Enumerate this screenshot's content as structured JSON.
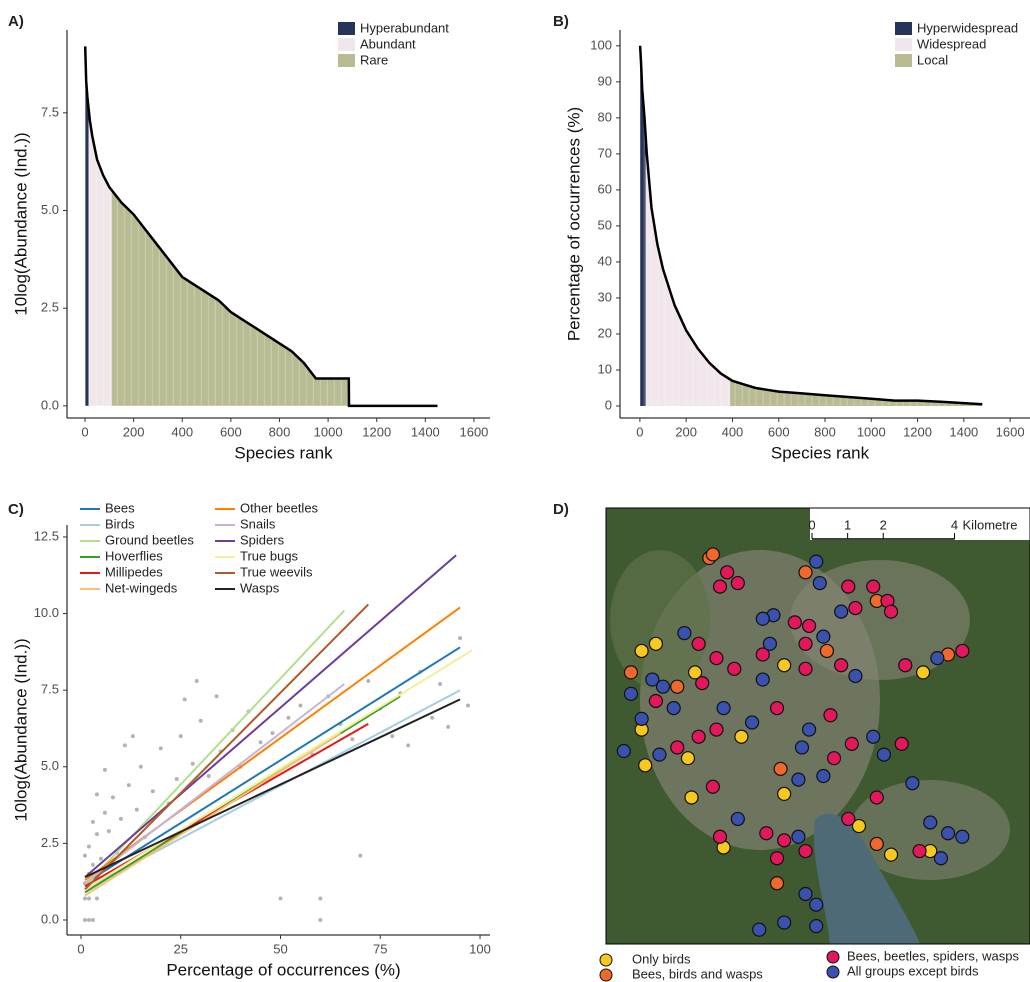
{
  "chart_data": [
    {
      "type": "area",
      "panel": "A)",
      "xlabel": "Species rank",
      "ylabel": "10log(Abundance (Ind.))",
      "x": [
        1,
        5,
        10,
        20,
        30,
        50,
        75,
        100,
        150,
        200,
        250,
        300,
        350,
        400,
        450,
        500,
        550,
        600,
        650,
        700,
        750,
        800,
        850,
        900,
        950,
        1000,
        1050,
        1085,
        1086,
        1450
      ],
      "y": [
        9.2,
        8.3,
        7.9,
        7.3,
        6.9,
        6.3,
        5.9,
        5.6,
        5.2,
        4.9,
        4.5,
        4.1,
        3.7,
        3.3,
        3.1,
        2.9,
        2.7,
        2.4,
        2.2,
        2.0,
        1.8,
        1.6,
        1.4,
        1.1,
        0.7,
        0.7,
        0.7,
        0.7,
        0,
        0
      ],
      "classes": [
        {
          "name": "Hyperabundant",
          "color": "#26345a",
          "ranks": [
            1,
            15
          ]
        },
        {
          "name": "Abundant",
          "color": "#f1e6ec",
          "ranks": [
            15,
            110
          ]
        },
        {
          "name": "Rare",
          "color": "#b9bb93",
          "ranks": [
            110,
            1450
          ]
        }
      ],
      "xlim": [
        -74,
        1666
      ],
      "ylim": [
        -0.31,
        9.62
      ],
      "xticks": [
        0,
        200,
        400,
        600,
        800,
        1000,
        1200,
        1400,
        1600
      ],
      "yticks": [
        {
          "value": 0,
          "label": "0.0"
        },
        {
          "value": 2.5,
          "label": "2.5"
        },
        {
          "value": 5,
          "label": "5.0"
        },
        {
          "value": 7.5,
          "label": "7.5"
        }
      ]
    },
    {
      "type": "area",
      "panel": "B)",
      "xlabel": "Species rank",
      "ylabel": "Percentage of occurrences (%)",
      "x": [
        1,
        5,
        10,
        20,
        30,
        50,
        75,
        100,
        150,
        200,
        250,
        300,
        350,
        400,
        450,
        500,
        550,
        600,
        700,
        800,
        900,
        1000,
        1100,
        1200,
        1300,
        1480
      ],
      "y": [
        100,
        95,
        88,
        80,
        70,
        55,
        45,
        38,
        28,
        21,
        16,
        12,
        9,
        7,
        6,
        5,
        4.5,
        4,
        3.5,
        3,
        2.5,
        2,
        1.5,
        1.5,
        1.2,
        0.5
      ],
      "classes": [
        {
          "name": "Hyperwidespread",
          "color": "#26345a",
          "ranks": [
            1,
            25
          ]
        },
        {
          "name": "Widespread",
          "color": "#f1e6ec",
          "ranks": [
            25,
            390
          ]
        },
        {
          "name": "Local",
          "color": "#b9bb93",
          "ranks": [
            390,
            1480
          ]
        }
      ],
      "xlim": [
        -86,
        1686
      ],
      "ylim": [
        -3.33,
        104.4
      ],
      "xticks": [
        0,
        200,
        400,
        600,
        800,
        1000,
        1200,
        1400,
        1600
      ],
      "yticks": [
        0,
        10,
        20,
        30,
        40,
        50,
        60,
        70,
        80,
        90,
        100
      ]
    },
    {
      "type": "scatter",
      "panel": "C)",
      "xlabel": "Percentage of occurrences (%)",
      "ylabel": "10log(Abundance (Ind.))",
      "points": {
        "color": "#9a9a9a",
        "x": [
          1,
          2,
          3,
          1,
          2,
          4,
          1,
          2,
          3,
          1,
          2,
          4,
          3,
          5,
          6,
          7,
          8,
          10,
          12,
          15,
          18,
          20,
          22,
          25,
          28,
          30,
          32,
          35,
          38,
          40,
          42,
          45,
          48,
          50,
          52,
          55,
          58,
          60,
          60,
          62,
          65,
          68,
          70,
          72,
          75,
          78,
          80,
          82,
          85,
          88,
          90,
          92,
          95,
          97,
          9,
          14,
          16,
          24,
          6,
          11,
          4,
          13,
          26,
          29,
          34
        ],
        "y": [
          0,
          0,
          0,
          0.7,
          0.7,
          0.7,
          1.2,
          1.5,
          1.8,
          2.1,
          2.4,
          2.8,
          3.2,
          2.0,
          3.5,
          2.9,
          4.0,
          3.3,
          4.4,
          5.0,
          4.2,
          5.6,
          3.8,
          6.0,
          5.1,
          6.5,
          4.7,
          5.5,
          6.2,
          5.0,
          6.8,
          5.8,
          6.1,
          0.7,
          6.6,
          7.0,
          5.4,
          0.7,
          0,
          7.3,
          6.4,
          5.9,
          2.1,
          7.8,
          6.9,
          6.0,
          7.4,
          5.7,
          8.1,
          6.6,
          7.7,
          6.3,
          9.2,
          7.0,
          2.2,
          3.6,
          2.7,
          4.6,
          4.9,
          5.7,
          4.1,
          6.0,
          7.2,
          7.8,
          7.3
        ]
      },
      "series": [
        {
          "name": "Bees",
          "color": "#1f78b4",
          "x": [
            1,
            95
          ],
          "y": [
            1.2,
            8.9
          ]
        },
        {
          "name": "Birds",
          "color": "#a6cee3",
          "x": [
            1,
            95
          ],
          "y": [
            1.0,
            7.5
          ]
        },
        {
          "name": "Ground beetles",
          "color": "#b2df8a",
          "x": [
            1,
            66
          ],
          "y": [
            1.1,
            10.1
          ]
        },
        {
          "name": "Hoverflies",
          "color": "#33a02c",
          "x": [
            1,
            80
          ],
          "y": [
            0.9,
            7.3
          ]
        },
        {
          "name": "Millipedes",
          "color": "#e31a1c",
          "x": [
            1,
            72
          ],
          "y": [
            1.1,
            6.4
          ]
        },
        {
          "name": "Net-wingeds",
          "color": "#fdbf6f",
          "x": [
            1,
            65
          ],
          "y": [
            0.8,
            6.1
          ]
        },
        {
          "name": "Other beetles",
          "color": "#ff7f00",
          "x": [
            1,
            95
          ],
          "y": [
            1.3,
            10.2
          ]
        },
        {
          "name": "Snails",
          "color": "#cab2d6",
          "x": [
            1,
            66
          ],
          "y": [
            1.2,
            7.7
          ]
        },
        {
          "name": "Spiders",
          "color": "#6a3d9a",
          "x": [
            1,
            94
          ],
          "y": [
            1.4,
            11.9
          ]
        },
        {
          "name": "True bugs",
          "color": "#f5ee99",
          "x": [
            1,
            98
          ],
          "y": [
            1.0,
            8.8
          ]
        },
        {
          "name": "True weevils",
          "color": "#b15928",
          "x": [
            1,
            72
          ],
          "y": [
            1.0,
            10.3
          ]
        },
        {
          "name": "Wasps",
          "color": "#222222",
          "x": [
            1,
            95
          ],
          "y": [
            1.4,
            7.2
          ]
        }
      ],
      "xlim": [
        -3.5,
        102.5
      ],
      "ylim": [
        -0.49,
        12.89
      ],
      "xticks": [
        0,
        25,
        50,
        75,
        100
      ],
      "yticks": [
        {
          "value": 0,
          "label": "0.0"
        },
        {
          "value": 2.5,
          "label": "2.5"
        },
        {
          "value": 5,
          "label": "5.0"
        },
        {
          "value": 7.5,
          "label": "7.5"
        },
        {
          "value": 10,
          "label": "10.0"
        },
        {
          "value": 12.5,
          "label": "12.5"
        }
      ]
    },
    {
      "type": "map",
      "panel": "D)",
      "scale_label": "Kilometre",
      "scale_ticks": [
        0,
        1,
        2,
        4
      ],
      "xlim": [
        0,
        11.9
      ],
      "ylim": [
        0,
        12.2
      ],
      "groups": [
        {
          "name": "Only birds",
          "color": "#f7c81e",
          "x": [
            1.0,
            2.5,
            5.0,
            8.9,
            1.0,
            7.1,
            8.0,
            9.1,
            2.4,
            2.3,
            1.1,
            3.8,
            5.0,
            3.3,
            1.4
          ],
          "y": [
            8.2,
            7.6,
            7.8,
            7.6,
            6.0,
            3.3,
            2.5,
            2.6,
            4.1,
            5.2,
            5.0,
            5.8,
            4.2,
            2.7,
            8.4
          ]
        },
        {
          "name": "Bees, birds and wasps",
          "color": "#f0692a",
          "x": [
            2.9,
            3.0,
            5.6,
            7.6,
            6.2,
            0.7,
            2.0,
            9.6,
            4.9,
            7.6,
            4.8
          ],
          "y": [
            10.8,
            10.9,
            10.4,
            9.6,
            8.2,
            7.6,
            7.2,
            8.1,
            4.9,
            2.8,
            1.7
          ]
        },
        {
          "name": "Bees, beetles, spiders, wasps",
          "color": "#e2175c",
          "x": [
            3.4,
            3.7,
            3.2,
            6.8,
            7.5,
            7.0,
            7.9,
            8.0,
            5.3,
            5.7,
            5.6,
            4.4,
            3.1,
            2.6,
            1.4,
            2.7,
            3.6,
            5.6,
            6.6,
            8.4,
            10.0,
            2.0,
            2.6,
            3.1,
            4.8,
            6.3,
            6.9,
            6.4,
            8.3,
            7.6,
            6.8,
            8.8,
            3.0,
            3.2,
            4.5,
            5.0,
            5.6,
            4.8
          ],
          "y": [
            10.4,
            10.1,
            10.0,
            10.0,
            10.0,
            9.4,
            9.6,
            9.3,
            9.0,
            8.9,
            8.4,
            8.1,
            8.0,
            8.4,
            6.8,
            7.3,
            7.7,
            7.7,
            7.8,
            7.8,
            8.2,
            5.5,
            5.8,
            6.0,
            6.6,
            6.4,
            5.6,
            5.2,
            5.6,
            4.1,
            3.5,
            2.6,
            4.4,
            3.0,
            3.1,
            2.9,
            2.6,
            2.4
          ]
        },
        {
          "name": "All groups except birds",
          "color": "#3a52ad",
          "x": [
            5.9,
            6.0,
            6.6,
            4.7,
            4.4,
            6.1,
            4.6,
            2.2,
            1.3,
            1.6,
            0.7,
            1.9,
            4.4,
            7.0,
            9.3,
            1.0,
            0.5,
            1.5,
            3.3,
            4.1,
            5.7,
            5.5,
            5.4,
            6.1,
            7.5,
            7.8,
            8.6,
            9.1,
            9.6,
            9.4,
            10.0,
            3.7,
            5.4,
            5.6,
            5.9,
            5.0,
            4.3,
            5.9
          ],
          "y": [
            10.7,
            10.1,
            9.3,
            9.2,
            9.1,
            8.6,
            8.4,
            8.7,
            7.4,
            7.2,
            7.0,
            6.6,
            7.4,
            7.5,
            8.0,
            6.3,
            5.4,
            5.3,
            6.6,
            6.2,
            6.0,
            5.5,
            4.6,
            4.7,
            5.8,
            5.3,
            4.5,
            3.4,
            3.1,
            2.4,
            3.0,
            3.5,
            3.0,
            1.4,
            0.5,
            0.6,
            0.4,
            1.1
          ]
        }
      ]
    }
  ]
}
